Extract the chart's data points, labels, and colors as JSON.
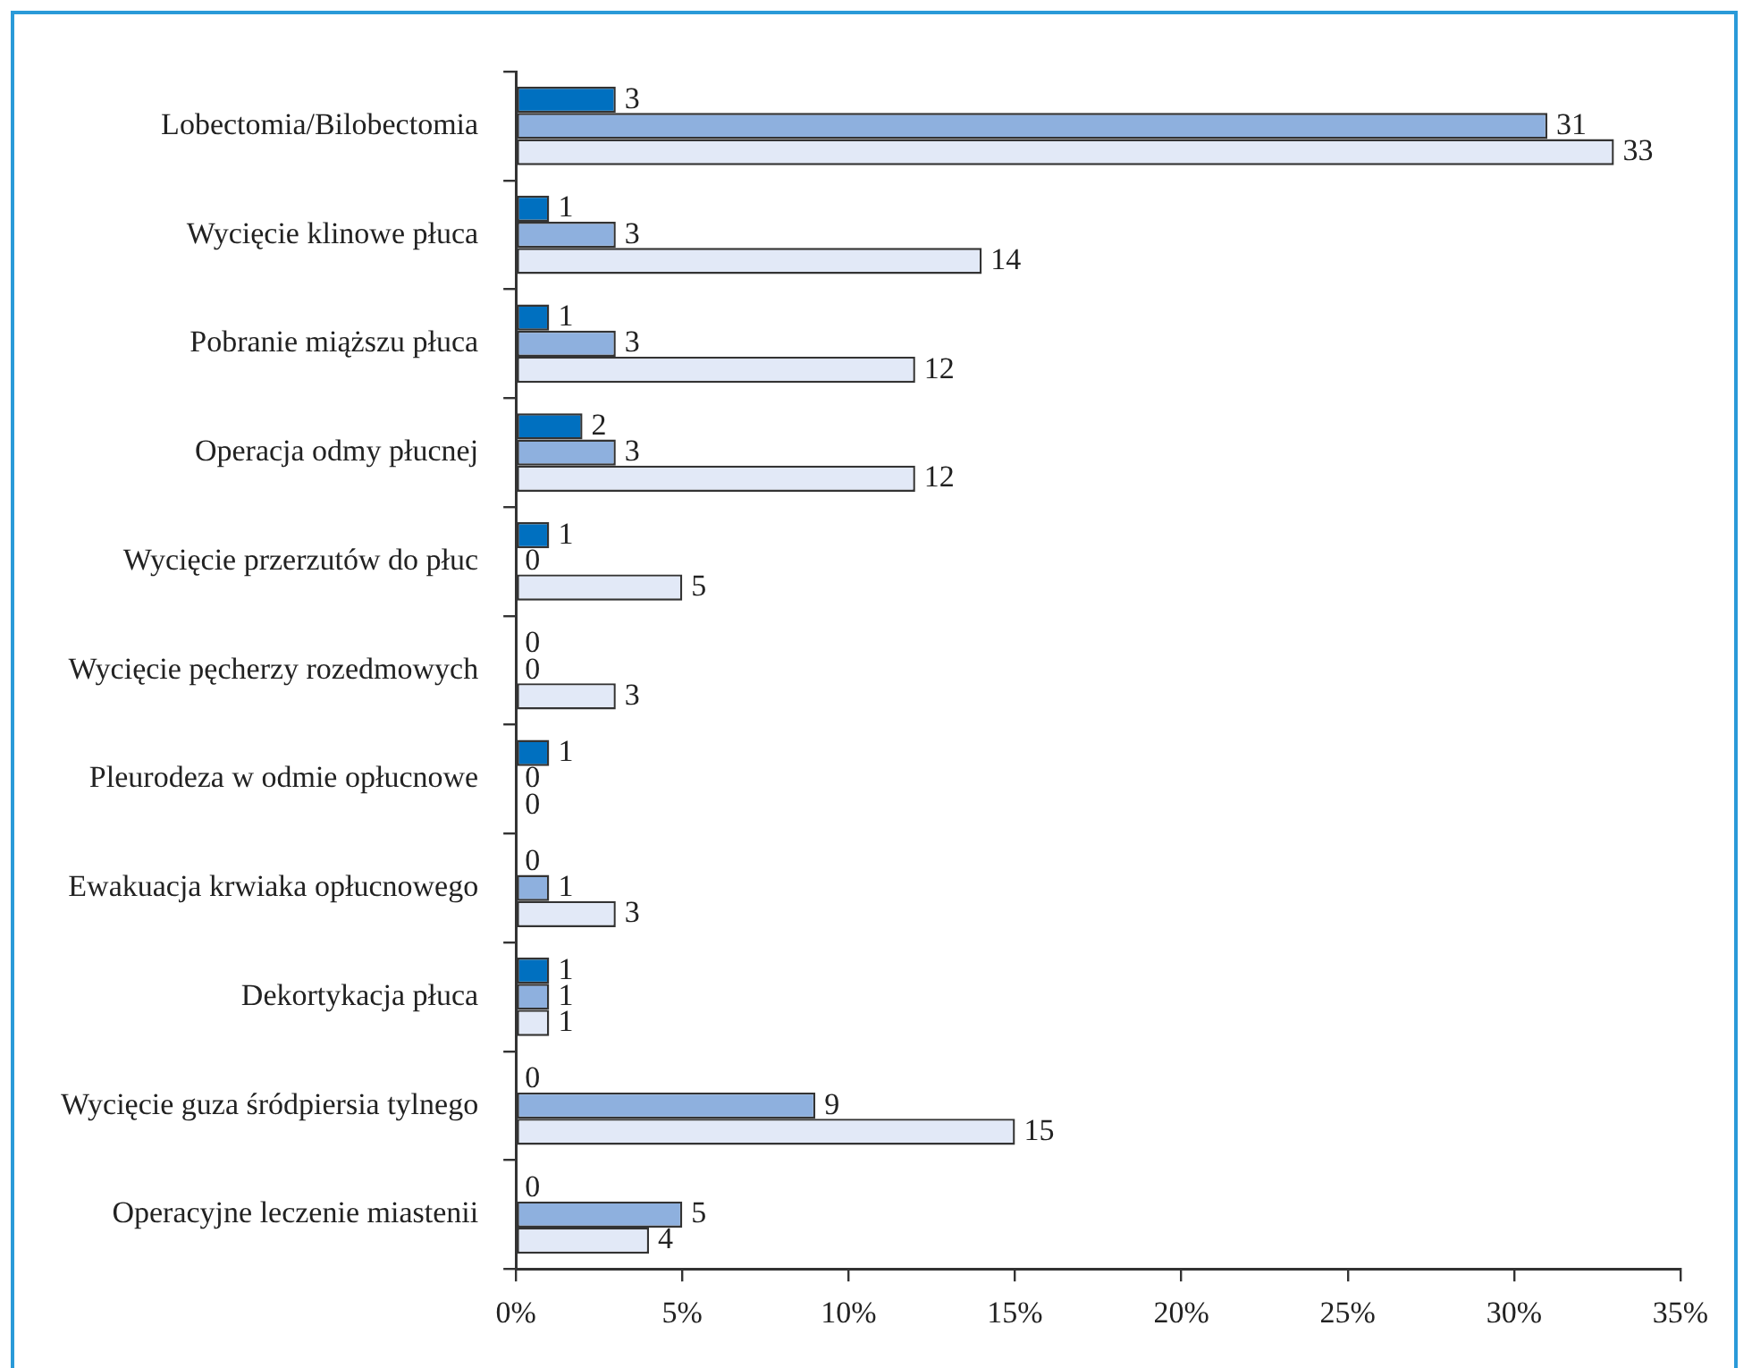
{
  "chart_data": {
    "type": "bar",
    "orientation": "horizontal",
    "data_labels": true,
    "legend": false,
    "grid": false,
    "categories": [
      "Lobectomia/Bilobectomia",
      "Wycięcie klinowe płuca",
      "Pobranie miąższu płuca",
      "Operacja odmy płucnej",
      "Wycięcie przerzutów do płuc",
      "Wycięcie pęcherzy rozedmowych",
      "Pleurodeza w odmie opłucnowe",
      "Ewakuacja krwiaka opłucnowego",
      "Dekortykacja płuca",
      "Wycięcie guza śródpiersia tylnego",
      "Operacyjne leczenie miastenii"
    ],
    "series": [
      {
        "color": "#0070c0",
        "values": [
          3,
          1,
          1,
          2,
          1,
          0,
          1,
          0,
          1,
          0,
          0
        ]
      },
      {
        "color": "#8eb0de",
        "values": [
          31,
          3,
          3,
          3,
          0,
          0,
          0,
          1,
          1,
          9,
          5
        ]
      },
      {
        "color": "#e2e9f7",
        "values": [
          33,
          14,
          12,
          12,
          5,
          3,
          0,
          3,
          1,
          15,
          4
        ]
      }
    ],
    "xlim": [
      0,
      35
    ],
    "xticks": [
      {
        "value": 0,
        "label": "0%"
      },
      {
        "value": 5,
        "label": "5%"
      },
      {
        "value": 10,
        "label": "10%"
      },
      {
        "value": 15,
        "label": "15%"
      },
      {
        "value": 20,
        "label": "20%"
      },
      {
        "value": 25,
        "label": "25%"
      },
      {
        "value": 30,
        "label": "30%"
      },
      {
        "value": 35,
        "label": "35%"
      }
    ]
  }
}
